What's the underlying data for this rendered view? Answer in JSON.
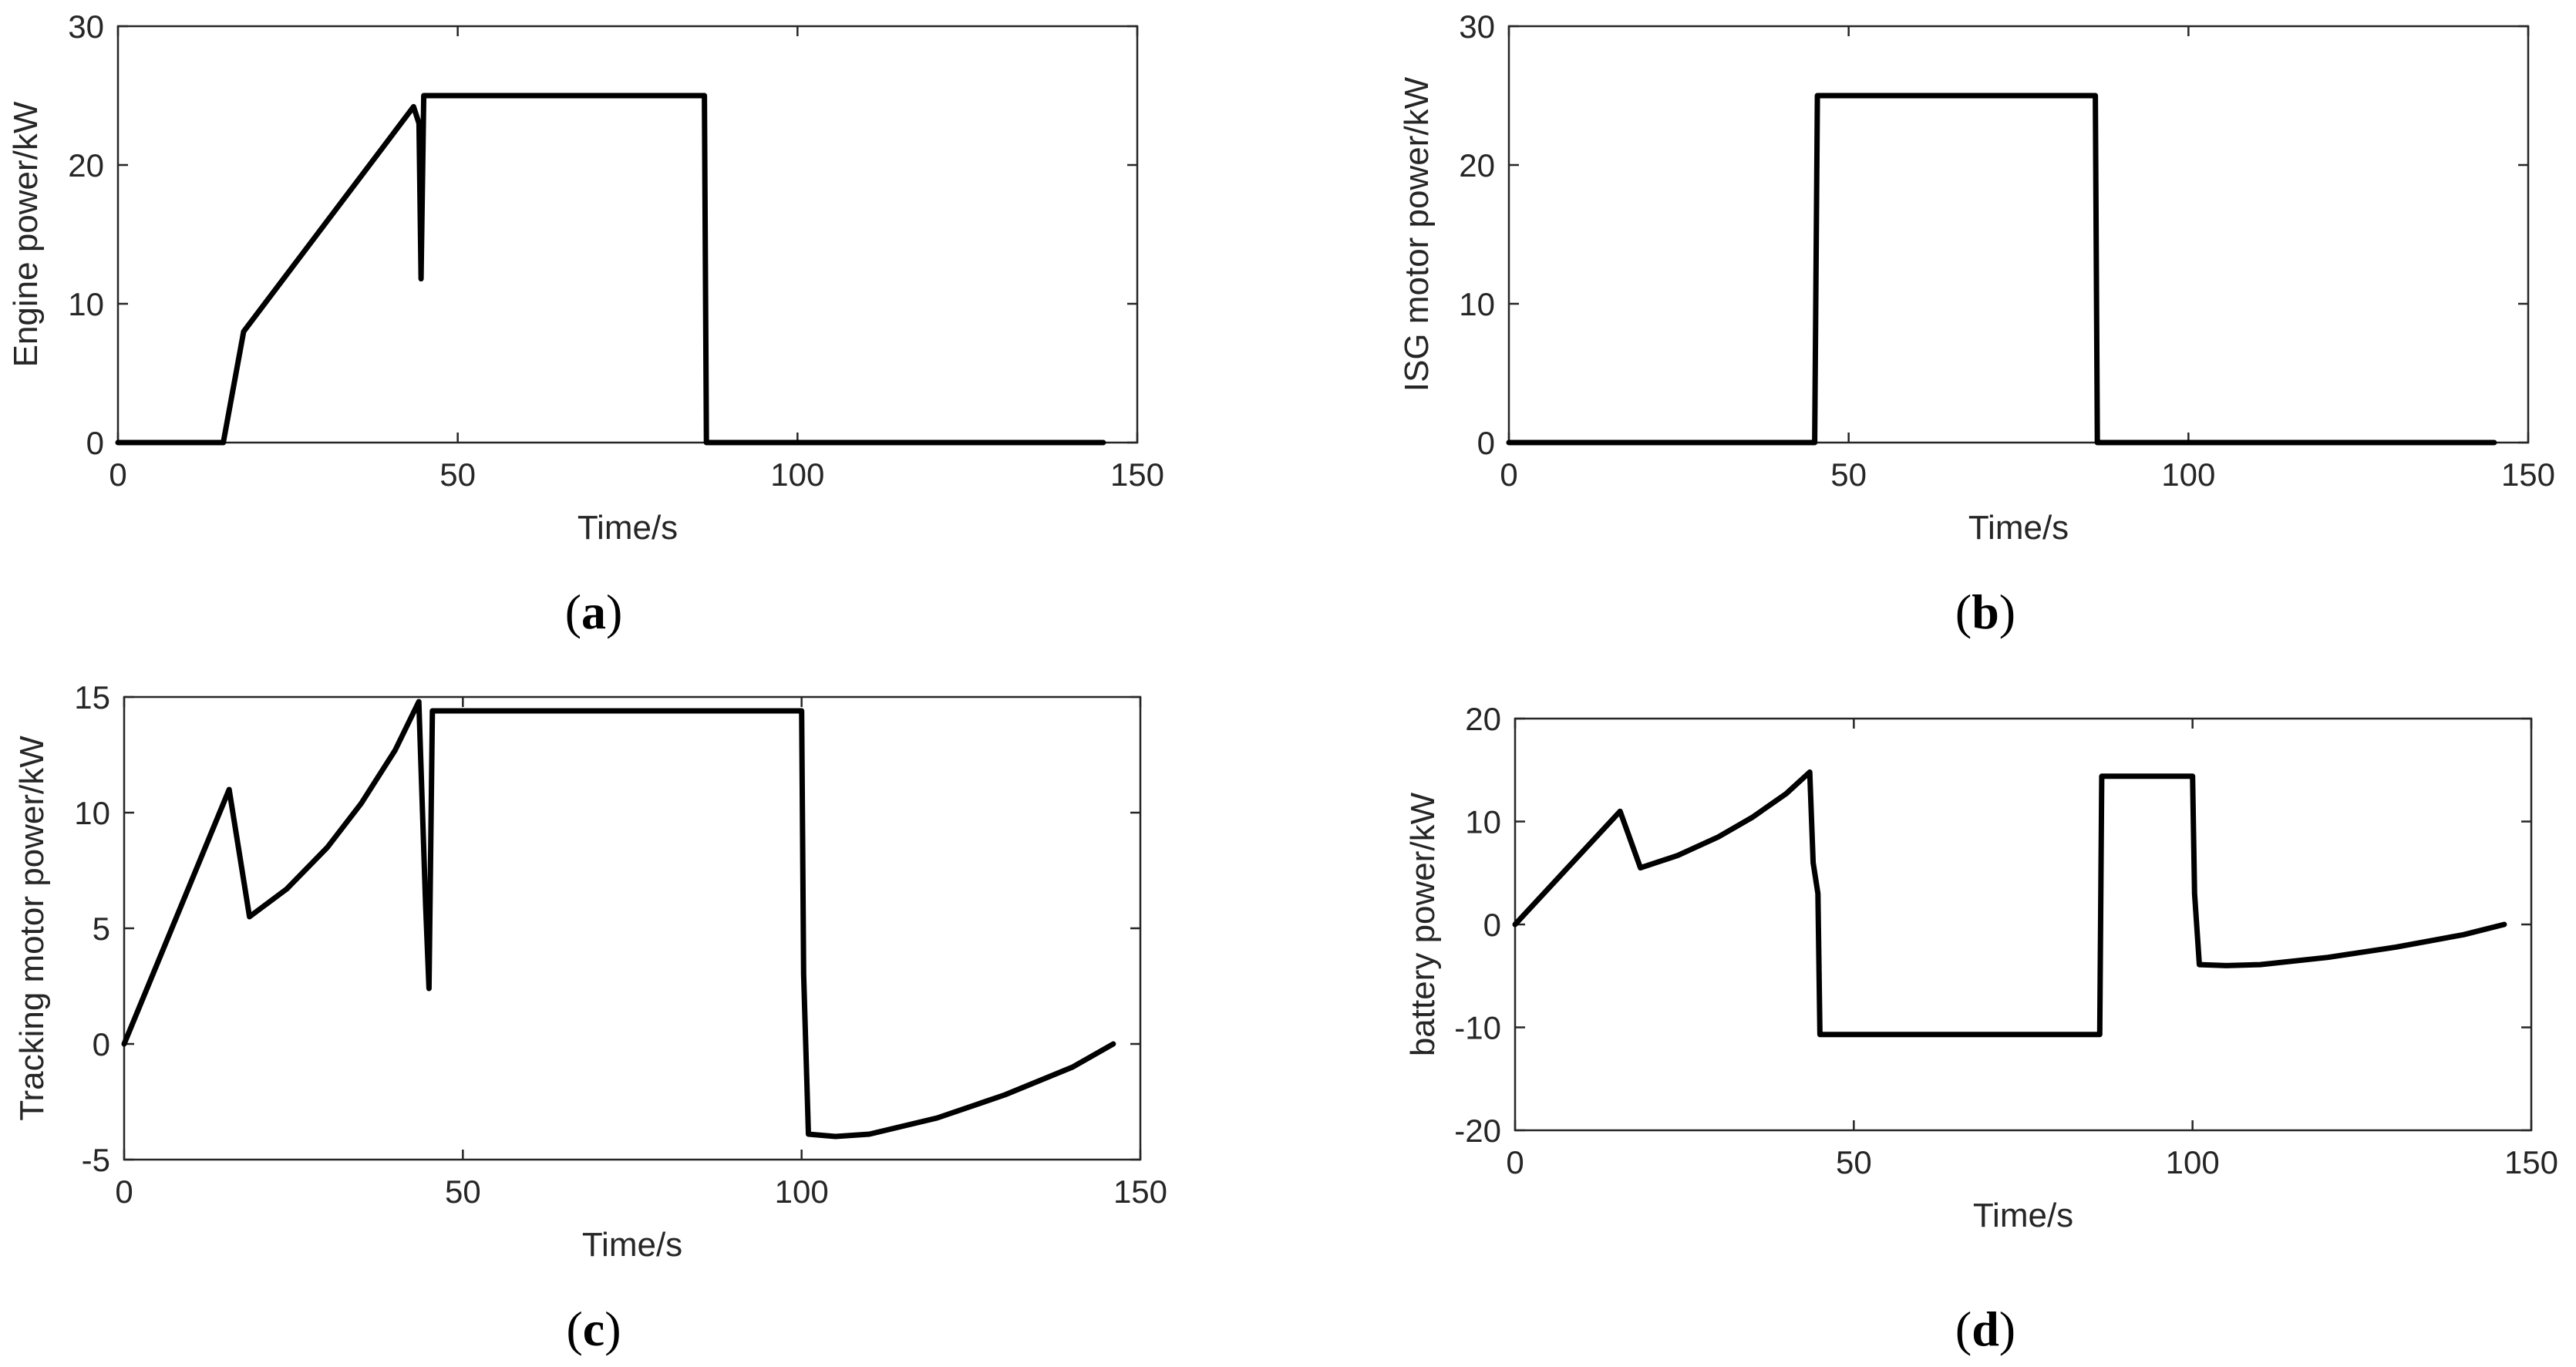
{
  "chart_data": [
    {
      "id": "a",
      "type": "line",
      "caption_letter": "a",
      "xlabel": "Time/s",
      "ylabel": "Engine power/kW",
      "xlim": [
        0,
        150
      ],
      "ylim": [
        0,
        30
      ],
      "xticks": [
        "0",
        "50",
        "100",
        "150"
      ],
      "yticks": [
        "0",
        "10",
        "20",
        "30"
      ],
      "grid": false,
      "series": [
        {
          "x": [
            0,
            15.5,
            18.5,
            43.5,
            44.3,
            44.6,
            45,
            86.3,
            86.6,
            145
          ],
          "y": [
            0,
            0,
            8,
            24.2,
            23,
            11.8,
            25,
            25,
            0,
            0
          ]
        }
      ]
    },
    {
      "id": "b",
      "type": "line",
      "caption_letter": "b",
      "xlabel": "Time/s",
      "ylabel": "ISG motor power/kW",
      "xlim": [
        0,
        150
      ],
      "ylim": [
        0,
        30
      ],
      "xticks": [
        "0",
        "50",
        "100",
        "150"
      ],
      "yticks": [
        "0",
        "10",
        "20",
        "30"
      ],
      "grid": false,
      "series": [
        {
          "x": [
            0,
            45,
            45.4,
            86.3,
            86.6,
            145
          ],
          "y": [
            0,
            0,
            25,
            25,
            0,
            0
          ]
        }
      ]
    },
    {
      "id": "c",
      "type": "line",
      "caption_letter": "c",
      "xlabel": "Time/s",
      "ylabel": "Tracking motor power/kW",
      "xlim": [
        0,
        150
      ],
      "ylim": [
        -5,
        15
      ],
      "xticks": [
        "0",
        "50",
        "100",
        "150"
      ],
      "yticks": [
        "-5",
        "0",
        "5",
        "10",
        "15"
      ],
      "grid": false,
      "series": [
        {
          "x": [
            0,
            15.5,
            18.5,
            24,
            30,
            35,
            40,
            43.5,
            44.5,
            45,
            45.5,
            100,
            100.3,
            101,
            105,
            110,
            120,
            130,
            140,
            146
          ],
          "y": [
            0,
            11,
            5.5,
            6.7,
            8.5,
            10.4,
            12.7,
            14.8,
            6,
            2.4,
            14.4,
            14.4,
            3,
            -3.9,
            -4,
            -3.9,
            -3.2,
            -2.2,
            -1,
            0
          ]
        }
      ]
    },
    {
      "id": "d",
      "type": "line",
      "caption_letter": "d",
      "xlabel": "Time/s",
      "ylabel": "battery power/kW",
      "xlim": [
        0,
        150
      ],
      "ylim": [
        -20,
        20
      ],
      "xticks": [
        "0",
        "50",
        "100",
        "150"
      ],
      "yticks": [
        "-20",
        "-10",
        "0",
        "10",
        "20"
      ],
      "grid": false,
      "series": [
        {
          "x": [
            0,
            15.5,
            18.5,
            24,
            30,
            35,
            40,
            43.5,
            44,
            44.7,
            45,
            45.5,
            86.3,
            86.6,
            100,
            100.3,
            101,
            105,
            110,
            120,
            130,
            140,
            146
          ],
          "y": [
            0,
            11,
            5.5,
            6.7,
            8.5,
            10.4,
            12.7,
            14.8,
            6,
            3,
            -10.7,
            -10.7,
            -10.7,
            14.4,
            14.4,
            3,
            -3.9,
            -4,
            -3.9,
            -3.2,
            -2.2,
            -1,
            0
          ]
        }
      ]
    }
  ]
}
